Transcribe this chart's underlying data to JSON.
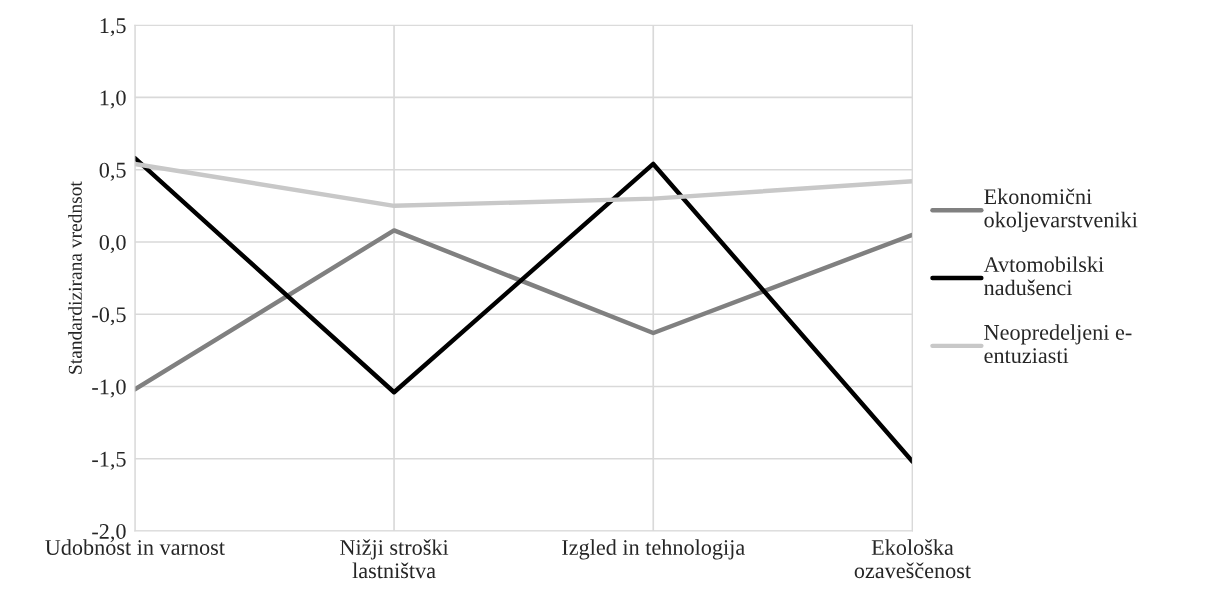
{
  "chart_data": {
    "type": "line",
    "ylabel": "Standardizirana vrednsot",
    "categories": [
      "Udobnost in varnost",
      "Nižji stroški\nlastništva",
      "Izgled in tehnologija",
      "Ekološka\nozaveščenost"
    ],
    "series": [
      {
        "name": "Ekonomični\nokoljevarstveniki",
        "color": "#808080",
        "values": [
          -1.02,
          0.08,
          -0.63,
          0.05
        ]
      },
      {
        "name": "Avtomobilski\nnadušenci",
        "color": "#000000",
        "values": [
          0.58,
          -1.04,
          0.54,
          -1.52
        ]
      },
      {
        "name": "Neopredeljeni e-\nentuziasti",
        "color": "#c8c8c8",
        "values": [
          0.54,
          0.25,
          0.3,
          0.42
        ]
      }
    ],
    "ylim": [
      -2.0,
      1.5
    ],
    "yticks": [
      {
        "value": -2.0,
        "label": "-2,0"
      },
      {
        "value": -1.5,
        "label": "-1,5"
      },
      {
        "value": -1.0,
        "label": "-1,0"
      },
      {
        "value": -0.5,
        "label": "-0,5"
      },
      {
        "value": 0.0,
        "label": "0,0"
      },
      {
        "value": 0.5,
        "label": "0,5"
      },
      {
        "value": 1.0,
        "label": "1,0"
      },
      {
        "value": 1.5,
        "label": "1,5"
      }
    ],
    "grid": true,
    "legend": "right",
    "marker": "none",
    "line_style": "solid"
  }
}
